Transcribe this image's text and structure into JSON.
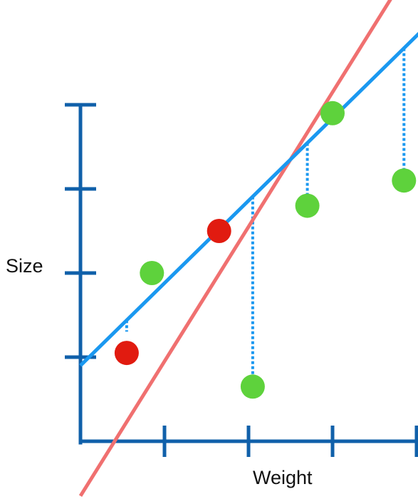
{
  "chart_data": {
    "type": "scatter",
    "xlabel": "Weight",
    "ylabel": "Size",
    "grid": false,
    "x_ticks": [
      1,
      2,
      3,
      4
    ],
    "y_ticks": [
      1,
      2,
      3,
      4
    ],
    "xlim": [
      0,
      4.15
    ],
    "ylim": [
      -1.1,
      4.2
    ],
    "lines": [
      {
        "color": "#f07070",
        "intercept": -0.65,
        "slope": 1.6
      },
      {
        "color": "#1a98f0",
        "intercept": 0.9,
        "slope": 0.98
      }
    ],
    "points": [
      {
        "x": 0.55,
        "y": 1.05,
        "color": "#e11b10",
        "residual": false
      },
      {
        "x": 1.65,
        "y": 2.5,
        "color": "#e11b10",
        "residual": false
      },
      {
        "x": 0.85,
        "y": 2.0,
        "color": "#5ed23c",
        "residual": false
      },
      {
        "x": 2.05,
        "y": 0.65,
        "color": "#5ed23c",
        "residual": true
      },
      {
        "x": 2.7,
        "y": 2.8,
        "color": "#5ed23c",
        "residual": true
      },
      {
        "x": 3.0,
        "y": 3.9,
        "color": "#5ed23c",
        "residual": true
      },
      {
        "x": 3.85,
        "y": 3.1,
        "color": "#5ed23c",
        "residual": true
      }
    ],
    "residual_marker_at_x": 0.55
  },
  "colors": {
    "axis": "#1060aa",
    "residual": "#1a98f0"
  }
}
